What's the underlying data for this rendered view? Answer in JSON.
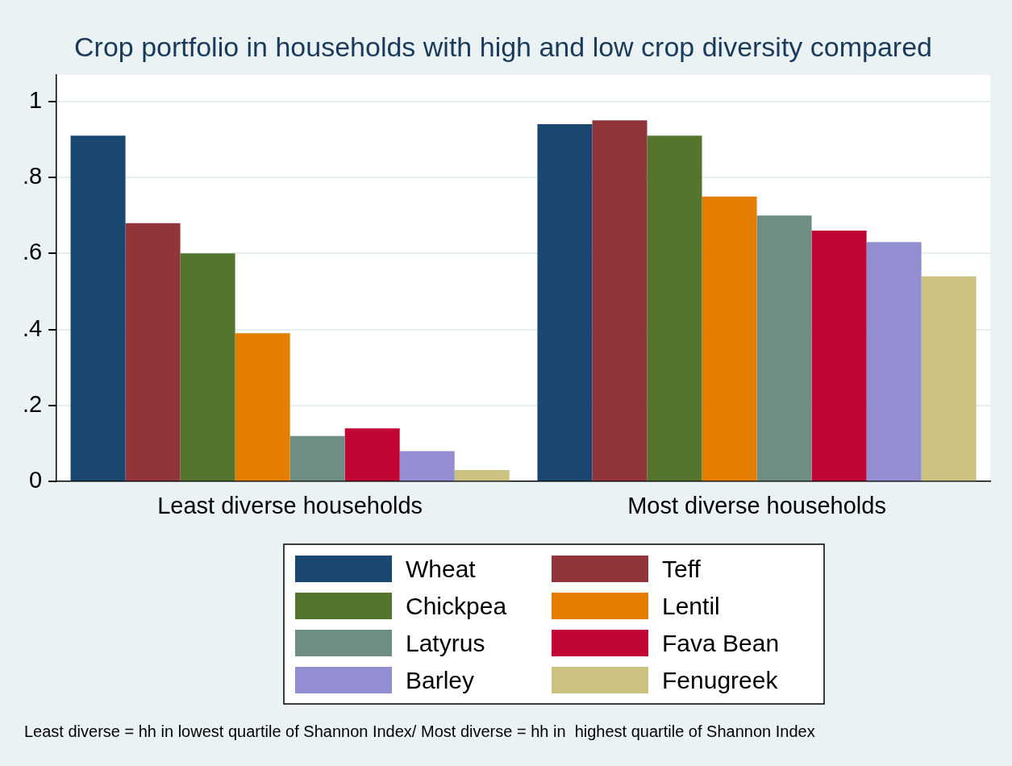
{
  "chart_data": {
    "type": "bar",
    "title": "Crop portfolio in households with high and low crop diversity compared",
    "categories": [
      "Least diverse households",
      "Most diverse households"
    ],
    "series": [
      {
        "name": "Wheat",
        "color": "#1a476f",
        "values": [
          0.91,
          0.94
        ]
      },
      {
        "name": "Teff",
        "color": "#90353b",
        "values": [
          0.68,
          0.95
        ]
      },
      {
        "name": "Chickpea",
        "color": "#55752f",
        "values": [
          0.6,
          0.91
        ]
      },
      {
        "name": "Lentil",
        "color": "#e37e00",
        "values": [
          0.39,
          0.75
        ]
      },
      {
        "name": "Latyrus",
        "color": "#6e8e84",
        "values": [
          0.12,
          0.7
        ]
      },
      {
        "name": "Fava Bean",
        "color": "#c10534",
        "values": [
          0.14,
          0.66
        ]
      },
      {
        "name": "Barley",
        "color": "#938dd2",
        "values": [
          0.08,
          0.63
        ]
      },
      {
        "name": "Fenugreek",
        "color": "#cac27e",
        "values": [
          0.03,
          0.54
        ]
      }
    ],
    "ylim": [
      0,
      1.07
    ],
    "yticks": [
      {
        "value": 0,
        "label": "0"
      },
      {
        "value": 0.2,
        "label": ".2"
      },
      {
        "value": 0.4,
        "label": ".4"
      },
      {
        "value": 0.6,
        "label": ".6"
      },
      {
        "value": 0.8,
        "label": ".8"
      },
      {
        "value": 1,
        "label": "1"
      }
    ],
    "grid": "y",
    "legend": "bottom",
    "annotations": [
      "Least diverse = hh in lowest quartile of Shannon Index/ Most diverse = hh in  highest quartile of Shannon Index"
    ]
  }
}
